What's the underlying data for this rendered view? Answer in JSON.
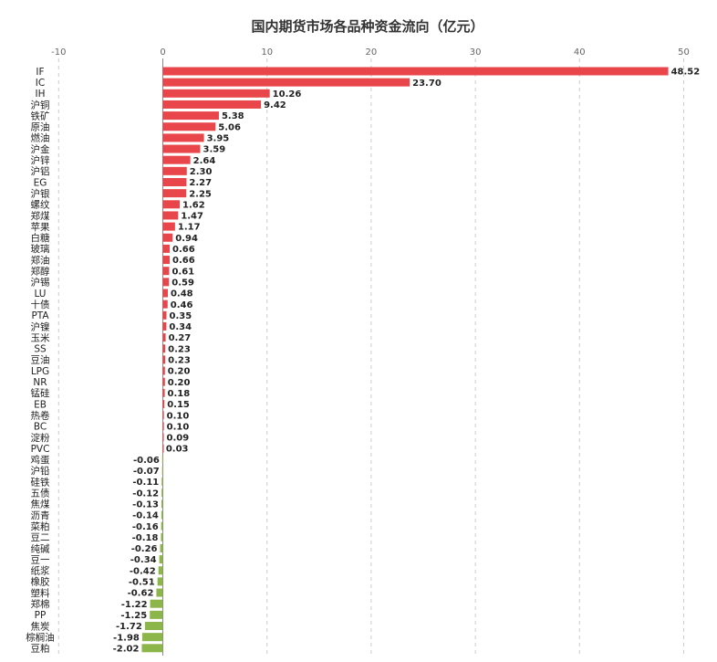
{
  "chart_data": {
    "type": "bar",
    "orientation": "horizontal",
    "title": "国内期货市场各品种资金流向（亿元）",
    "xlabel": "",
    "ylabel": "",
    "xlim": [
      -10,
      50
    ],
    "ticks": [
      -10,
      0,
      10,
      20,
      30,
      40,
      50
    ],
    "grid": true,
    "colors": {
      "positive": "#e8464a",
      "negative": "#8cb54a"
    },
    "categories": [
      "IF",
      "IC",
      "IH",
      "沪铜",
      "铁矿",
      "原油",
      "燃油",
      "沪金",
      "沪锌",
      "沪铝",
      "EG",
      "沪银",
      "螺纹",
      "郑煤",
      "苹果",
      "白糖",
      "玻璃",
      "郑油",
      "郑醇",
      "沪锡",
      "LU",
      "十债",
      "PTA",
      "沪镍",
      "玉米",
      "SS",
      "豆油",
      "LPG",
      "NR",
      "锰硅",
      "EB",
      "热卷",
      "BC",
      "淀粉",
      "PVC",
      "鸡蛋",
      "沪铅",
      "硅铁",
      "五债",
      "焦煤",
      "沥青",
      "菜粕",
      "豆二",
      "纯碱",
      "豆一",
      "纸浆",
      "橡胶",
      "塑料",
      "郑棉",
      "PP",
      "焦炭",
      "棕榈油",
      "豆粕"
    ],
    "values": [
      48.52,
      23.7,
      10.26,
      9.42,
      5.38,
      5.06,
      3.95,
      3.59,
      2.64,
      2.3,
      2.27,
      2.25,
      1.62,
      1.47,
      1.17,
      0.94,
      0.66,
      0.66,
      0.61,
      0.59,
      0.48,
      0.46,
      0.35,
      0.34,
      0.27,
      0.23,
      0.23,
      0.2,
      0.2,
      0.18,
      0.15,
      0.1,
      0.1,
      0.09,
      0.03,
      -0.06,
      -0.07,
      -0.11,
      -0.12,
      -0.13,
      -0.14,
      -0.16,
      -0.18,
      -0.26,
      -0.34,
      -0.42,
      -0.51,
      -0.62,
      -1.22,
      -1.25,
      -1.72,
      -1.98,
      -2.02
    ],
    "value_labels": [
      "48.52",
      "23.70",
      "10.26",
      "9.42",
      "5.38",
      "5.06",
      "3.95",
      "3.59",
      "2.64",
      "2.30",
      "2.27",
      "2.25",
      "1.62",
      "1.47",
      "1.17",
      "0.94",
      "0.66",
      "0.66",
      "0.61",
      "0.59",
      "0.48",
      "0.46",
      "0.35",
      "0.34",
      "0.27",
      "0.23",
      "0.23",
      "0.20",
      "0.20",
      "0.18",
      "0.15",
      "0.10",
      "0.10",
      "0.09",
      "0.03",
      "-0.06",
      "-0.07",
      "-0.11",
      "-0.12",
      "-0.13",
      "-0.14",
      "-0.16",
      "-0.18",
      "-0.26",
      "-0.34",
      "-0.42",
      "-0.51",
      "-0.62",
      "-1.22",
      "-1.25",
      "-1.72",
      "-1.98",
      "-2.02"
    ]
  }
}
